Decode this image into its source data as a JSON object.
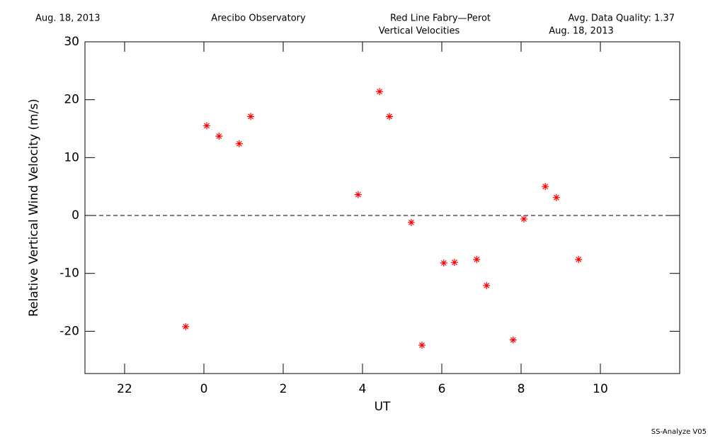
{
  "header": {
    "date": "Aug. 18, 2013",
    "site": "Arecibo Observatory",
    "instrument": "Red Line Fabry—Perot",
    "quality": "Avg. Data Quality: 1.37"
  },
  "footer": "SS-Analyze V05",
  "chart_data": {
    "type": "scatter",
    "title": "Vertical Velocities",
    "subtitle": "Aug. 18, 2013",
    "x_label": "UT",
    "y_label": "Relative Vertical Wind Velocity (m/s)",
    "color": "#ff0000",
    "marker": "*",
    "xlim": [
      -3,
      12
    ],
    "ylim": [
      -27.3,
      30
    ],
    "xticks": [
      {
        "value": -2,
        "label": "22"
      },
      0,
      2,
      4,
      6,
      8,
      10
    ],
    "yticks": [
      -20,
      -10,
      0,
      10,
      20,
      30
    ],
    "hline": 0,
    "x": [
      -0.46,
      0.07,
      0.38,
      0.89,
      1.18,
      3.89,
      4.43,
      4.68,
      5.23,
      5.5,
      6.05,
      6.32,
      6.88,
      7.13,
      7.8,
      8.07,
      8.61,
      8.89,
      9.45
    ],
    "values": [
      -19.2,
      15.5,
      13.7,
      12.4,
      17.1,
      3.6,
      21.4,
      17.1,
      -1.2,
      -22.4,
      -8.2,
      -8.1,
      -7.6,
      -12.1,
      -21.5,
      -0.6,
      5.0,
      3.1,
      -7.6
    ]
  }
}
